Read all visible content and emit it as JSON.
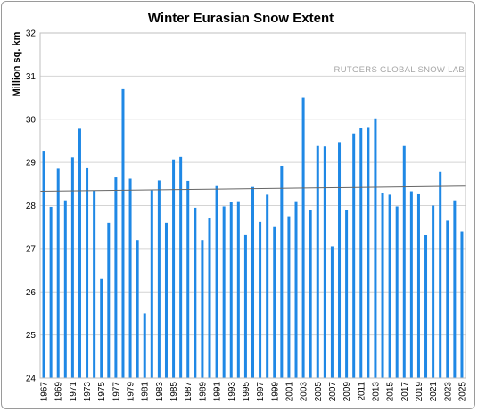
{
  "chart_data": {
    "type": "bar",
    "title": "Winter Eurasian Snow Extent",
    "ylabel": "Million sq. km",
    "xlabel": "",
    "watermark": "RUTGERS GLOBAL SNOW LAB",
    "ylim": [
      24,
      32
    ],
    "yticks": [
      24,
      25,
      26,
      27,
      28,
      29,
      30,
      31,
      32
    ],
    "grid": true,
    "bar_color": "#1f88e5",
    "trend_color": "#666666",
    "trendline": {
      "start": 28.33,
      "end": 28.45
    },
    "x_tick_labels": [
      "1967",
      "1969",
      "1971",
      "1973",
      "1975",
      "1977",
      "1979",
      "1981",
      "1983",
      "1985",
      "1987",
      "1989",
      "1991",
      "1993",
      "1995",
      "1997",
      "1999",
      "2001",
      "2003",
      "2005",
      "2007",
      "2009",
      "2011",
      "2013",
      "2015",
      "2017",
      "2019",
      "2021",
      "2023",
      "2025"
    ],
    "x": [
      1967,
      1968,
      1969,
      1970,
      1971,
      1972,
      1973,
      1974,
      1975,
      1976,
      1977,
      1978,
      1979,
      1980,
      1981,
      1982,
      1983,
      1984,
      1985,
      1986,
      1987,
      1988,
      1989,
      1990,
      1991,
      1992,
      1993,
      1994,
      1995,
      1996,
      1997,
      1998,
      1999,
      2000,
      2001,
      2002,
      2003,
      2004,
      2005,
      2006,
      2007,
      2008,
      2009,
      2010,
      2011,
      2012,
      2013,
      2014,
      2015,
      2016,
      2017,
      2018,
      2019,
      2020,
      2021,
      2022,
      2023,
      2024,
      2025
    ],
    "values": [
      29.27,
      27.97,
      28.87,
      28.12,
      29.12,
      29.78,
      28.88,
      28.35,
      26.3,
      27.6,
      28.65,
      30.7,
      28.62,
      27.2,
      25.5,
      28.35,
      28.58,
      27.6,
      29.07,
      29.13,
      28.57,
      27.95,
      27.2,
      27.7,
      28.45,
      27.98,
      28.08,
      28.1,
      27.33,
      28.43,
      27.62,
      28.25,
      27.52,
      28.92,
      27.75,
      28.1,
      30.5,
      27.9,
      29.38,
      29.37,
      27.05,
      29.47,
      27.9,
      29.67,
      29.8,
      29.82,
      30.02,
      28.3,
      28.25,
      27.98,
      29.38,
      28.33,
      28.28,
      27.32,
      28.0,
      28.78,
      27.65,
      28.12,
      27.4
    ]
  }
}
